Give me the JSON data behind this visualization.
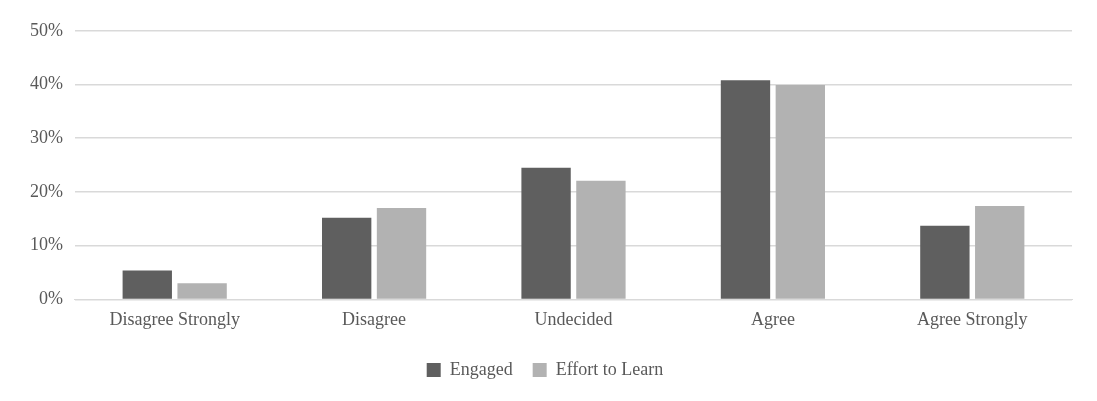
{
  "chart_data": {
    "type": "bar",
    "categories": [
      "Disagree Strongly",
      "Disagree",
      "Undecided",
      "Agree",
      "Agree Strongly"
    ],
    "series": [
      {
        "name": "Engaged",
        "color": "#5f5f5f",
        "values": [
          5.4,
          15.2,
          24.5,
          40.8,
          13.7
        ]
      },
      {
        "name": "Effort to Learn",
        "color": "#b2b2b2",
        "values": [
          3.0,
          17.0,
          22.1,
          39.9,
          17.4
        ]
      }
    ],
    "ylim": [
      0,
      50
    ],
    "yticks": [
      {
        "value": 0,
        "label": "0%"
      },
      {
        "value": 10,
        "label": "10%"
      },
      {
        "value": 20,
        "label": "20%"
      },
      {
        "value": 30,
        "label": "30%"
      },
      {
        "value": 40,
        "label": "40%"
      },
      {
        "value": 50,
        "label": "50%"
      }
    ],
    "grid": "y",
    "legend": "bottom"
  }
}
